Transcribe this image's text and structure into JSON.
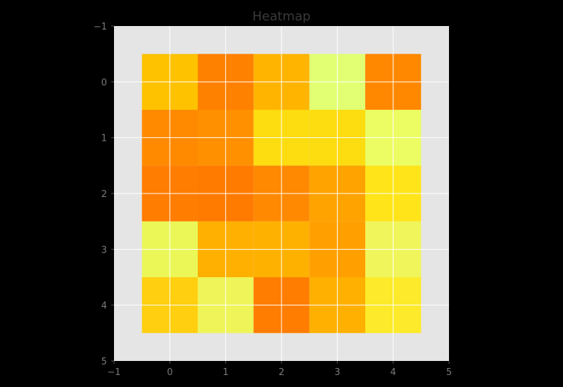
{
  "chart_data": {
    "type": "heatmap",
    "title": "Heatmap",
    "xlabel": "",
    "ylabel": "",
    "xlim": [
      -1,
      5
    ],
    "ylim": [
      5,
      -1
    ],
    "y_inverted": true,
    "xticks": [
      -1,
      0,
      1,
      2,
      3,
      4,
      5
    ],
    "yticks": [
      -1,
      0,
      1,
      2,
      3,
      4,
      5
    ],
    "grid": true,
    "background_color": "#e5e5e5",
    "grid_color": "#ffffff",
    "colors": [
      [
        "#ffc200",
        "#ff8100",
        "#ffb400",
        "#e2ff73",
        "#ff8800"
      ],
      [
        "#ff8a00",
        "#ff9000",
        "#fddc10",
        "#fddc10",
        "#ebfd62"
      ],
      [
        "#ff7d00",
        "#ff7b00",
        "#ff8900",
        "#ffa300",
        "#ffe41a"
      ],
      [
        "#ebf756",
        "#ffb000",
        "#ffb100",
        "#ffa000",
        "#f0f55b"
      ],
      [
        "#ffcf10",
        "#eff459",
        "#ff7d00",
        "#ffb000",
        "#fdea2a"
      ]
    ]
  }
}
